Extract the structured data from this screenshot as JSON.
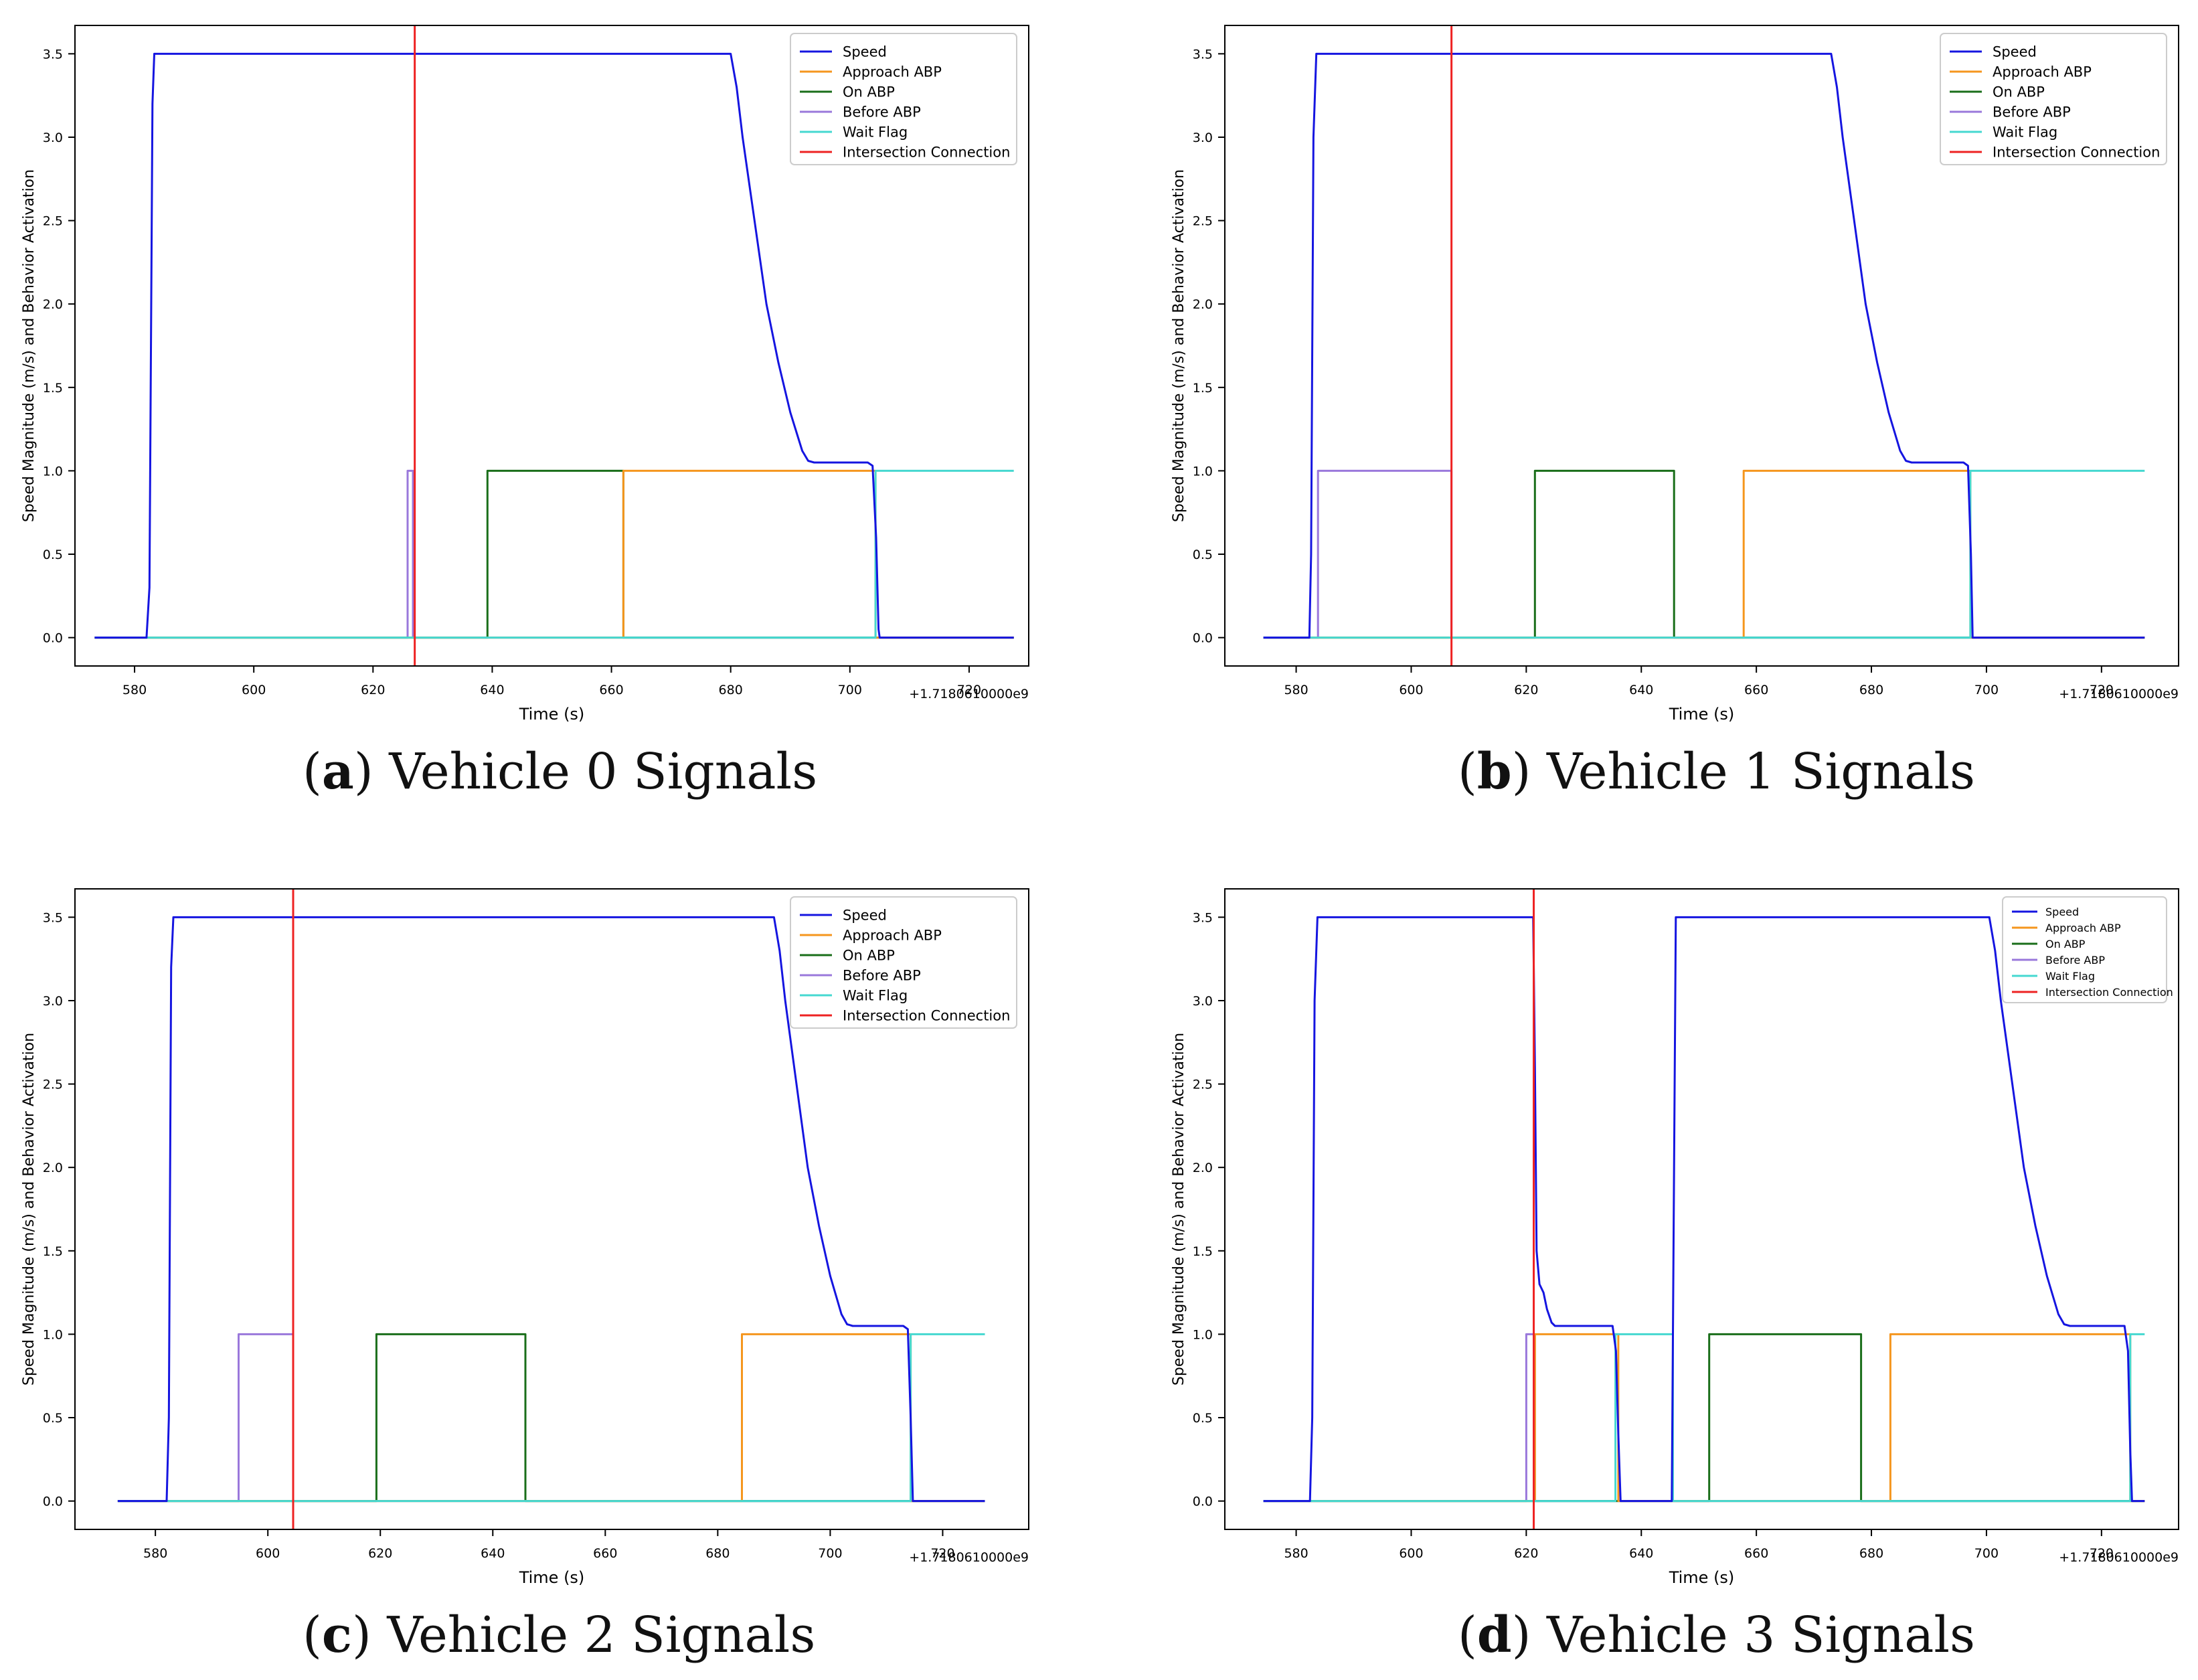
{
  "figure": {
    "captions": [
      {
        "letter": "a",
        "text": "Vehicle 0 Signals"
      },
      {
        "letter": "b",
        "text": "Vehicle 1 Signals"
      },
      {
        "letter": "c",
        "text": "Vehicle 2 Signals"
      },
      {
        "letter": "d",
        "text": "Vehicle 3 Signals"
      }
    ]
  },
  "colors": {
    "Speed": "#1515e0",
    "Approach ABP": "#f5961e",
    "On ABP": "#1a6e1a",
    "Before ABP": "#9a78db",
    "Wait Flag": "#45d8d0",
    "Intersection Connection": "#ee2222"
  },
  "chart_data": [
    {
      "type": "line",
      "title": "Vehicle 0 Signals",
      "xlabel": "Time (s)",
      "ylabel": "Speed Magnitude (m/s) and Behavior Activation",
      "offset_label": "+1.7180610000e9",
      "xlim": [
        570,
        730
      ],
      "ylim": [
        -0.17,
        3.67
      ],
      "xticks": [
        580,
        600,
        620,
        640,
        660,
        680,
        700,
        720
      ],
      "yticks": [
        0.0,
        0.5,
        1.0,
        1.5,
        2.0,
        2.5,
        3.0,
        3.5
      ],
      "legend_location": "top-right",
      "legend_size": "normal",
      "series": [
        {
          "name": "Speed",
          "points": [
            [
              573.3,
              0
            ],
            [
              582,
              0
            ],
            [
              582.5,
              0.3
            ],
            [
              583,
              3.2
            ],
            [
              583.3,
              3.5
            ],
            [
              680,
              3.5
            ],
            [
              681,
              3.3
            ],
            [
              682,
              3.0
            ],
            [
              684,
              2.5
            ],
            [
              686,
              2.0
            ],
            [
              688,
              1.65
            ],
            [
              690,
              1.35
            ],
            [
              692,
              1.12
            ],
            [
              693,
              1.06
            ],
            [
              694,
              1.05
            ],
            [
              703,
              1.05
            ],
            [
              703.8,
              1.03
            ],
            [
              704.4,
              0.6
            ],
            [
              704.8,
              0.05
            ],
            [
              705,
              0
            ],
            [
              727.5,
              0
            ]
          ]
        },
        {
          "name": "Approach ABP",
          "points": [
            [
              573.3,
              0
            ],
            [
              662,
              0
            ],
            [
              662,
              1
            ],
            [
              704.3,
              1
            ],
            [
              704.3,
              0
            ],
            [
              727.5,
              0
            ]
          ]
        },
        {
          "name": "On ABP",
          "points": [
            [
              573.3,
              0
            ],
            [
              639.2,
              0
            ],
            [
              639.2,
              1
            ],
            [
              662,
              1
            ],
            [
              662,
              0
            ],
            [
              727.5,
              0
            ]
          ]
        },
        {
          "name": "Before ABP",
          "points": [
            [
              573.3,
              0
            ],
            [
              625.8,
              0
            ],
            [
              625.8,
              1
            ],
            [
              626.7,
              1
            ],
            [
              626.7,
              0
            ],
            [
              727.5,
              0
            ]
          ]
        },
        {
          "name": "Wait Flag",
          "points": [
            [
              573.3,
              0
            ],
            [
              704.3,
              0
            ],
            [
              704.3,
              1
            ],
            [
              727.5,
              1
            ]
          ]
        }
      ],
      "vline": {
        "name": "Intersection Connection",
        "x": 627
      }
    },
    {
      "type": "line",
      "title": "Vehicle 1 Signals",
      "xlabel": "Time (s)",
      "ylabel": "Speed Magnitude (m/s) and Behavior Activation",
      "offset_label": "+1.7180610000e9",
      "xlim": [
        567.6,
        733.4
      ],
      "ylim": [
        -0.17,
        3.67
      ],
      "xticks": [
        580,
        600,
        620,
        640,
        660,
        680,
        700,
        720
      ],
      "yticks": [
        0.0,
        0.5,
        1.0,
        1.5,
        2.0,
        2.5,
        3.0,
        3.5
      ],
      "legend_location": "top-right",
      "legend_size": "normal",
      "series": [
        {
          "name": "Speed",
          "points": [
            [
              574.3,
              0
            ],
            [
              582.3,
              0
            ],
            [
              582.6,
              0.5
            ],
            [
              583,
              3.0
            ],
            [
              583.5,
              3.5
            ],
            [
              673,
              3.5
            ],
            [
              674,
              3.3
            ],
            [
              675,
              3.0
            ],
            [
              677,
              2.5
            ],
            [
              679,
              2.0
            ],
            [
              681,
              1.65
            ],
            [
              683,
              1.35
            ],
            [
              685,
              1.12
            ],
            [
              686,
              1.06
            ],
            [
              687,
              1.05
            ],
            [
              696,
              1.05
            ],
            [
              696.8,
              1.03
            ],
            [
              697.3,
              0.5
            ],
            [
              697.6,
              0
            ],
            [
              727.5,
              0
            ]
          ]
        },
        {
          "name": "Approach ABP",
          "points": [
            [
              574.3,
              0
            ],
            [
              657.8,
              0
            ],
            [
              657.8,
              1
            ],
            [
              697.2,
              1
            ],
            [
              697.2,
              0
            ],
            [
              727.5,
              0
            ]
          ]
        },
        {
          "name": "On ABP",
          "points": [
            [
              574.3,
              0
            ],
            [
              621.5,
              0
            ],
            [
              621.5,
              1
            ],
            [
              645.7,
              1
            ],
            [
              645.7,
              0
            ],
            [
              727.5,
              0
            ]
          ]
        },
        {
          "name": "Before ABP",
          "points": [
            [
              574.3,
              0
            ],
            [
              583.8,
              0
            ],
            [
              583.8,
              1
            ],
            [
              607,
              1
            ],
            [
              607,
              0
            ],
            [
              727.5,
              0
            ]
          ]
        },
        {
          "name": "Wait Flag",
          "points": [
            [
              574.3,
              0
            ],
            [
              697.2,
              0
            ],
            [
              697.2,
              1
            ],
            [
              727.5,
              1
            ]
          ]
        }
      ],
      "vline": {
        "name": "Intersection Connection",
        "x": 607
      }
    },
    {
      "type": "line",
      "title": "Vehicle 2 Signals",
      "xlabel": "Time (s)",
      "ylabel": "Speed Magnitude (m/s) and Behavior Activation",
      "offset_label": "+1.7180610000e9",
      "xlim": [
        565.7,
        735.3
      ],
      "ylim": [
        -0.17,
        3.67
      ],
      "xticks": [
        580,
        600,
        620,
        640,
        660,
        680,
        700,
        720
      ],
      "yticks": [
        0.0,
        0.5,
        1.0,
        1.5,
        2.0,
        2.5,
        3.0,
        3.5
      ],
      "legend_location": "top-right",
      "legend_size": "normal",
      "series": [
        {
          "name": "Speed",
          "points": [
            [
              573.3,
              0
            ],
            [
              582,
              0
            ],
            [
              582.4,
              0.5
            ],
            [
              582.8,
              3.2
            ],
            [
              583.2,
              3.5
            ],
            [
              690,
              3.5
            ],
            [
              691,
              3.3
            ],
            [
              692,
              3.0
            ],
            [
              694,
              2.5
            ],
            [
              696,
              2.0
            ],
            [
              698,
              1.65
            ],
            [
              700,
              1.35
            ],
            [
              702,
              1.12
            ],
            [
              703,
              1.06
            ],
            [
              704,
              1.05
            ],
            [
              713,
              1.05
            ],
            [
              713.8,
              1.03
            ],
            [
              714.3,
              0.5
            ],
            [
              714.7,
              0
            ],
            [
              727.5,
              0
            ]
          ]
        },
        {
          "name": "Approach ABP",
          "points": [
            [
              573.3,
              0
            ],
            [
              684.3,
              0
            ],
            [
              684.3,
              1
            ],
            [
              714.3,
              1
            ],
            [
              714.3,
              0
            ],
            [
              727.5,
              0
            ]
          ]
        },
        {
          "name": "On ABP",
          "points": [
            [
              573.3,
              0
            ],
            [
              619.3,
              0
            ],
            [
              619.3,
              1
            ],
            [
              645.8,
              1
            ],
            [
              645.8,
              0
            ],
            [
              727.5,
              0
            ]
          ]
        },
        {
          "name": "Before ABP",
          "points": [
            [
              573.3,
              0
            ],
            [
              594.8,
              0
            ],
            [
              594.8,
              1
            ],
            [
              604.5,
              1
            ],
            [
              604.5,
              0
            ],
            [
              727.5,
              0
            ]
          ]
        },
        {
          "name": "Wait Flag",
          "points": [
            [
              573.3,
              0
            ],
            [
              714.3,
              0
            ],
            [
              714.3,
              1
            ],
            [
              727.5,
              1
            ]
          ]
        }
      ],
      "vline": {
        "name": "Intersection Connection",
        "x": 604.5
      }
    },
    {
      "type": "line",
      "title": "Vehicle 3 Signals",
      "xlabel": "Time (s)",
      "ylabel": "Speed Magnitude (m/s) and Behavior Activation",
      "offset_label": "+1.7180610000e9",
      "xlim": [
        567.6,
        733.4
      ],
      "ylim": [
        -0.17,
        3.67
      ],
      "xticks": [
        580,
        600,
        620,
        640,
        660,
        680,
        700,
        720
      ],
      "yticks": [
        0.0,
        0.5,
        1.0,
        1.5,
        2.0,
        2.5,
        3.0,
        3.5
      ],
      "legend_location": "top-right",
      "legend_size": "small",
      "series": [
        {
          "name": "Speed",
          "points": [
            [
              574.3,
              0
            ],
            [
              582.4,
              0
            ],
            [
              582.8,
              0.5
            ],
            [
              583.2,
              3.0
            ],
            [
              583.7,
              3.5
            ],
            [
              621.2,
              3.5
            ],
            [
              621.5,
              2.6
            ],
            [
              621.8,
              1.5
            ],
            [
              622.3,
              1.3
            ],
            [
              623,
              1.25
            ],
            [
              623.6,
              1.15
            ],
            [
              624.4,
              1.07
            ],
            [
              625,
              1.05
            ],
            [
              635,
              1.05
            ],
            [
              635.6,
              0.9
            ],
            [
              636,
              0.4
            ],
            [
              636.4,
              0
            ],
            [
              645.3,
              0
            ],
            [
              645.7,
              2.0
            ],
            [
              646,
              3.5
            ],
            [
              700.5,
              3.5
            ],
            [
              701.5,
              3.3
            ],
            [
              702.5,
              3.0
            ],
            [
              704.5,
              2.5
            ],
            [
              706.5,
              2.0
            ],
            [
              708.5,
              1.65
            ],
            [
              710.5,
              1.35
            ],
            [
              712.5,
              1.12
            ],
            [
              713.5,
              1.06
            ],
            [
              714.5,
              1.05
            ],
            [
              724,
              1.05
            ],
            [
              724.6,
              0.9
            ],
            [
              725,
              0.3
            ],
            [
              725.3,
              0
            ],
            [
              727.5,
              0
            ]
          ]
        },
        {
          "name": "Approach ABP",
          "points": [
            [
              574.3,
              0
            ],
            [
              621.5,
              0
            ],
            [
              621.5,
              1
            ],
            [
              636,
              1
            ],
            [
              636,
              0
            ],
            [
              683.3,
              0
            ],
            [
              683.3,
              1
            ],
            [
              725,
              1
            ],
            [
              725,
              0
            ],
            [
              727.5,
              0
            ]
          ]
        },
        {
          "name": "On ABP",
          "points": [
            [
              574.3,
              0
            ],
            [
              651.8,
              0
            ],
            [
              651.8,
              1
            ],
            [
              678.2,
              1
            ],
            [
              678.2,
              0
            ],
            [
              727.5,
              0
            ]
          ]
        },
        {
          "name": "Before ABP",
          "points": [
            [
              574.3,
              0
            ],
            [
              620,
              0
            ],
            [
              620,
              1
            ],
            [
              621.5,
              1
            ],
            [
              621.5,
              0
            ],
            [
              727.5,
              0
            ]
          ]
        },
        {
          "name": "Wait Flag",
          "points": [
            [
              574.3,
              0
            ],
            [
              635.5,
              0
            ],
            [
              635.5,
              1
            ],
            [
              645.5,
              1
            ],
            [
              645.5,
              0
            ],
            [
              725,
              0
            ],
            [
              725,
              1
            ],
            [
              727.5,
              1
            ]
          ]
        }
      ],
      "vline": {
        "name": "Intersection Connection",
        "x": 621.3
      }
    }
  ]
}
